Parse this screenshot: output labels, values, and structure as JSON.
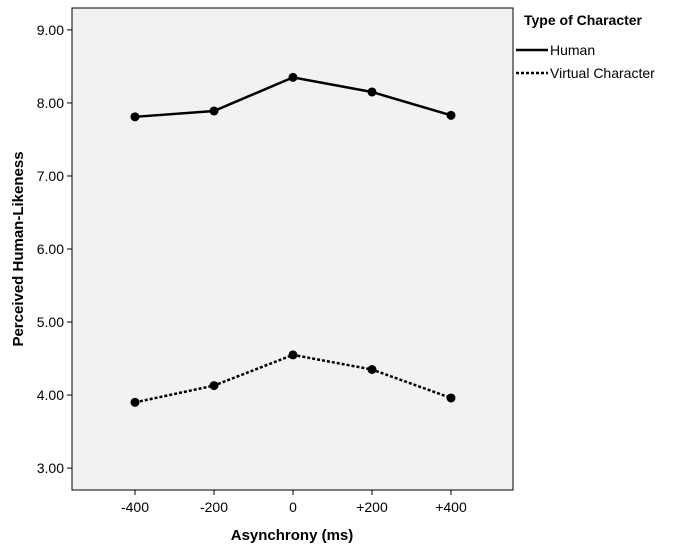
{
  "chart_data": {
    "type": "line",
    "title": "",
    "xlabel": "Asynchrony (ms)",
    "ylabel": "Perceived Human-Likeness",
    "categories": [
      "-400",
      "-200",
      "0",
      "+200",
      "+400"
    ],
    "yticks": [
      "3.00",
      "4.00",
      "5.00",
      "6.00",
      "7.00",
      "8.00",
      "9.00"
    ],
    "ylim": [
      2.7,
      9.3
    ],
    "grid": false,
    "legend": {
      "title": "Type of Character",
      "placement": "right",
      "entries": [
        "Human",
        "Virtual Character"
      ]
    },
    "series": [
      {
        "name": "Human",
        "values": [
          7.81,
          7.89,
          8.35,
          8.15,
          7.83
        ],
        "color": "#000000",
        "dash": "solid"
      },
      {
        "name": "Virtual Character",
        "values": [
          3.9,
          4.13,
          4.55,
          4.35,
          3.96
        ],
        "color": "#000000",
        "dash": "dotted"
      }
    ],
    "plot_background": "#f2f2f2"
  }
}
